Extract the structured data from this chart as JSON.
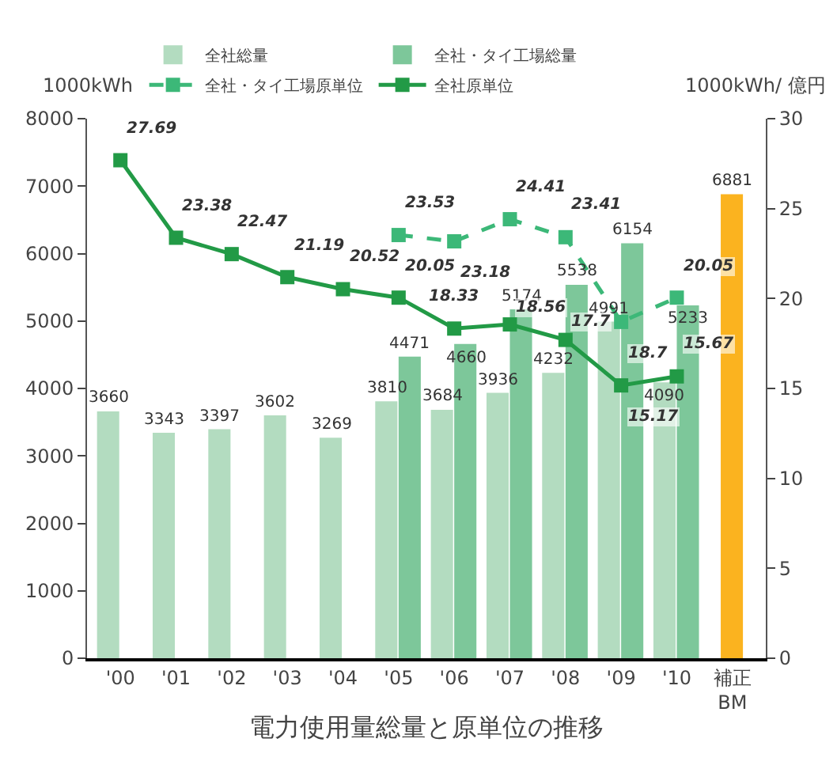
{
  "chart_data": {
    "type": "bar",
    "xlabel": "電力使用量総量と原単位の推移",
    "ylabel": "1000kWh",
    "y2label": "1000kWh/ 億円",
    "categories": [
      "'00",
      "'01",
      "'02",
      "'03",
      "'04",
      "'05",
      "'06",
      "'07",
      "'08",
      "'09",
      "'10",
      "補正\nBM"
    ],
    "series": [
      {
        "name": "全社総量",
        "color": "#b3dcc0",
        "values": [
          3660,
          3343,
          3397,
          3602,
          3269,
          3810,
          3684,
          3936,
          4232,
          4991,
          4090,
          null
        ]
      },
      {
        "name": "全社・タイ工場総量",
        "color": "#7dc79a",
        "values": [
          null,
          null,
          null,
          null,
          null,
          4471,
          4660,
          5174,
          5538,
          6154,
          5233,
          null
        ]
      },
      {
        "color": "#fbb31f",
        "values": [
          null,
          null,
          null,
          null,
          null,
          null,
          null,
          null,
          null,
          null,
          null,
          6881
        ]
      },
      {
        "name": "全社・タイ工場原単位",
        "type": "line",
        "axis": "y2",
        "line_style": "dashed",
        "marker": "square",
        "color": "#3cb878",
        "values": [
          null,
          null,
          null,
          null,
          null,
          23.53,
          23.18,
          24.41,
          23.41,
          18.7,
          20.05,
          null
        ]
      },
      {
        "name": "全社原単位",
        "type": "line",
        "axis": "y2",
        "line_style": "solid",
        "marker": "square",
        "color": "#229a46",
        "values": [
          27.69,
          23.38,
          22.47,
          21.19,
          20.52,
          20.05,
          18.33,
          18.56,
          17.7,
          15.17,
          15.67,
          null
        ]
      }
    ],
    "ylim": [
      0,
      8000
    ],
    "yticks": [
      0,
      1000,
      2000,
      3000,
      4000,
      5000,
      6000,
      7000,
      8000
    ],
    "y2lim": [
      0,
      30
    ],
    "y2ticks": [
      0,
      5,
      10,
      15,
      20,
      25,
      30
    ],
    "data_labels": true,
    "legend": "top"
  }
}
